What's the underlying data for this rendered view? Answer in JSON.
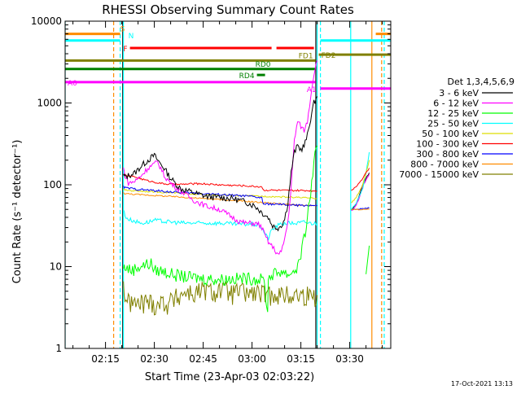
{
  "chart_data": {
    "type": "line",
    "title": "RHESSI Observing Summary Count Rates",
    "xlabel": "Start Time (23-Apr-03 02:03:22)",
    "ylabel": "Count Rate (s⁻¹ detector⁻¹)",
    "yscale": "log",
    "ylim": [
      1,
      10000
    ],
    "xlim_minutes": [
      2.6,
      102.6
    ],
    "x_tick_labels": [
      "02:15",
      "02:30",
      "02:45",
      "03:00",
      "03:15",
      "03:30"
    ],
    "x_tick_minutes": [
      15,
      30,
      45,
      60,
      75,
      90
    ],
    "y_tick_labels": [
      "1",
      "10",
      "100",
      "1000",
      "10000"
    ],
    "y_tick_values": [
      1,
      10,
      100,
      1000,
      10000
    ],
    "legend": {
      "title": "Det 1,3,4,5,6,9",
      "placement": "right-outside",
      "entries": [
        {
          "label": "3 - 6 keV",
          "color": "#000000"
        },
        {
          "label": "6 - 12 keV",
          "color": "#ff00ff"
        },
        {
          "label": "12 - 25 keV",
          "color": "#00ff00"
        },
        {
          "label": "25 - 50 keV",
          "color": "#00ffff"
        },
        {
          "label": "50 - 100 keV",
          "color": "#dddd00"
        },
        {
          "label": "100 - 300 keV",
          "color": "#ff0000"
        },
        {
          "label": "300 - 800 keV",
          "color": "#0000ff"
        },
        {
          "label": "800 - 7000 keV",
          "color": "#ff8c00"
        },
        {
          "label": "7000 - 15000 keV",
          "color": "#808000"
        }
      ]
    },
    "series": [
      {
        "name": "3 - 6 keV",
        "color": "#000000",
        "x": [
          20.5,
          21,
          24,
          26,
          28,
          30,
          31,
          33,
          35,
          38,
          42,
          46,
          50,
          54,
          58,
          61,
          63,
          65,
          66,
          67,
          68,
          69,
          70,
          71,
          72,
          73,
          74,
          75,
          76,
          77,
          78,
          79,
          80
        ],
        "y": [
          130,
          125,
          140,
          170,
          200,
          230,
          200,
          160,
          120,
          90,
          80,
          72,
          70,
          68,
          62,
          55,
          46,
          40,
          33,
          30,
          30,
          32,
          38,
          60,
          140,
          250,
          300,
          270,
          300,
          400,
          650,
          1000,
          1200
        ]
      },
      {
        "name": "6 - 12 keV",
        "color": "#ff00ff",
        "x": [
          20.5,
          21,
          22,
          24,
          26,
          28,
          30,
          31,
          32,
          33,
          35,
          38,
          42,
          46,
          50,
          52,
          54,
          56,
          58,
          60,
          62,
          63,
          64,
          65,
          66,
          67,
          68,
          69,
          70,
          71,
          72,
          73,
          74,
          75,
          76,
          77,
          78,
          79,
          80
        ],
        "y": [
          160,
          130,
          105,
          110,
          130,
          160,
          180,
          190,
          160,
          130,
          105,
          85,
          65,
          55,
          50,
          45,
          40,
          36,
          34,
          34,
          33,
          30,
          24,
          20,
          18,
          16,
          14,
          15,
          22,
          35,
          90,
          350,
          600,
          520,
          460,
          600,
          1200,
          2300,
          3300
        ]
      },
      {
        "name": "12 - 25 keV",
        "color": "#00ff00",
        "x": [
          20.5,
          21,
          23,
          25,
          27,
          29,
          30,
          32,
          34,
          36,
          40,
          45,
          50,
          55,
          60,
          62,
          63,
          64,
          64.2,
          64.8,
          65,
          66,
          68,
          69,
          70,
          71,
          72,
          73,
          74,
          75,
          76,
          77,
          78,
          79,
          80
        ],
        "y": [
          9.5,
          10,
          9,
          10,
          10.5,
          11,
          9,
          9,
          8.5,
          8,
          7.5,
          7.2,
          7,
          7.2,
          7.2,
          7,
          7,
          6.5,
          3.5,
          3.2,
          7,
          8,
          8.5,
          9,
          8.5,
          8,
          8.5,
          9,
          10,
          14,
          22,
          40,
          80,
          190,
          300
        ]
      },
      {
        "name": "25 - 50 keV",
        "color": "#00ffff",
        "x": [
          20.5,
          21,
          22,
          24,
          26,
          28,
          30,
          32,
          35,
          40,
          45,
          50,
          55,
          60,
          62,
          63,
          64,
          65,
          66,
          68,
          70,
          72,
          74,
          76,
          78,
          79,
          80
        ],
        "y": [
          50,
          42,
          38,
          36,
          34,
          35,
          37,
          36,
          35,
          34,
          34,
          34,
          33,
          33,
          32,
          30,
          25,
          22,
          28,
          32,
          34,
          34,
          34,
          35,
          34,
          34,
          34
        ]
      },
      {
        "name": "50 - 100 keV",
        "color": "#dddd00",
        "x": [
          20.5,
          21,
          25,
          30,
          35,
          40,
          45,
          50,
          55,
          60,
          65,
          70,
          75,
          80
        ],
        "y": [
          88,
          86,
          84,
          82,
          80,
          78,
          76,
          75,
          74,
          73,
          72,
          71,
          70,
          68
        ]
      },
      {
        "name": "100 - 300 keV",
        "color": "#ff0000",
        "x": [
          20.5,
          21,
          24,
          26,
          28,
          30,
          32,
          34,
          36,
          38,
          40,
          42,
          45,
          48,
          52,
          56,
          60,
          62,
          63,
          63.5,
          66,
          70,
          74,
          78,
          80
        ],
        "y": [
          135,
          130,
          125,
          118,
          112,
          108,
          104,
          102,
          101,
          101,
          102,
          103,
          103,
          101,
          99,
          98,
          96,
          95,
          95,
          86,
          86,
          85,
          85,
          85,
          84
        ]
      },
      {
        "name": "300 - 800 keV",
        "color": "#0000ff",
        "x": [
          20.5,
          21,
          25,
          30,
          35,
          40,
          45,
          50,
          55,
          60,
          62,
          63,
          63.5,
          66,
          70,
          74,
          78,
          80
        ],
        "y": [
          95,
          92,
          88,
          85,
          82,
          80,
          78,
          76,
          74,
          72,
          70,
          69,
          58,
          58,
          57,
          56,
          56,
          55
        ]
      },
      {
        "name": "800 - 7000 keV",
        "color": "#ff8c00",
        "x": [
          20.5,
          21,
          25,
          30,
          35,
          40,
          45,
          50,
          55,
          60,
          65,
          70,
          75,
          80
        ],
        "y": [
          80,
          78,
          76,
          74,
          72,
          70,
          68,
          66,
          64,
          62,
          60,
          58,
          56,
          55
        ]
      },
      {
        "name": "7000 - 15000 keV",
        "color": "#808000",
        "x": [
          20.5,
          21,
          22,
          23,
          24,
          26,
          28,
          30,
          32,
          34,
          36,
          38,
          40,
          42,
          44,
          46,
          48,
          50,
          52,
          54,
          56,
          58,
          60,
          62,
          64,
          65,
          66,
          68,
          70,
          72,
          74,
          76,
          78,
          80
        ],
        "y": [
          6,
          4.5,
          3.6,
          3.8,
          3.4,
          3.6,
          3.8,
          3.5,
          3.7,
          3.6,
          4,
          4.5,
          5,
          4.6,
          5,
          5.2,
          4.8,
          5.3,
          5,
          4.7,
          5,
          4.8,
          4.7,
          4.8,
          4.5,
          4.2,
          5,
          4.6,
          4.5,
          4.5,
          4.5,
          4.5,
          4.5,
          4.5
        ]
      }
    ],
    "after_gap_series": [
      {
        "name": "3 - 6 keV",
        "color": "#000000",
        "x": [
          90.5,
          91,
          92,
          93,
          94,
          95,
          96
        ],
        "y": [
          50,
          52,
          58,
          75,
          100,
          120,
          140
        ]
      },
      {
        "name": "6 - 12 keV",
        "color": "#ff00ff",
        "x": [
          90.5,
          91,
          92,
          93,
          94,
          95,
          96
        ],
        "y": [
          48,
          50,
          56,
          70,
          95,
          115,
          135
        ]
      },
      {
        "name": "12 - 25 keV",
        "color": "#00ff00",
        "x": [
          95,
          95.5,
          96
        ],
        "y": [
          8,
          12,
          18
        ]
      },
      {
        "name": "25 - 50 keV",
        "color": "#00ffff",
        "x": [
          90.5,
          92,
          94,
          95,
          96
        ],
        "y": [
          50,
          60,
          90,
          140,
          250
        ]
      },
      {
        "name": "50 - 100 keV",
        "color": "#dddd00",
        "x": [
          90.5,
          92,
          94,
          95,
          96
        ],
        "y": [
          60,
          70,
          100,
          140,
          200
        ]
      },
      {
        "name": "100 - 300 keV",
        "color": "#ff0000",
        "x": [
          90.5,
          92,
          94,
          95,
          96
        ],
        "y": [
          85,
          95,
          120,
          140,
          160
        ]
      },
      {
        "name": "300 - 800 keV",
        "color": "#0000ff",
        "x": [
          90.5,
          92,
          94,
          96
        ],
        "y": [
          50,
          50,
          51,
          52
        ]
      },
      {
        "name": "800 - 7000 keV",
        "color": "#ff8c00",
        "x": [
          90.5,
          92,
          94,
          96
        ],
        "y": [
          50,
          50,
          50,
          50
        ]
      }
    ],
    "flag_bars": [
      {
        "label": "S",
        "color": "#ff8c00",
        "y": 7000,
        "segments": [
          [
            2.6,
            19.5
          ],
          [
            98,
            102.6
          ]
        ]
      },
      {
        "label": "N",
        "color": "#00ffff",
        "y": 5800,
        "segments": [
          [
            2.6,
            19.5
          ],
          [
            81,
            102.6
          ]
        ]
      },
      {
        "label": "F",
        "color": "#ff0000",
        "y": 4700,
        "segments": [
          [
            22.5,
            66
          ],
          [
            67.5,
            79
          ]
        ]
      },
      {
        "label": "FD1",
        "color": "#808000",
        "y": 3300,
        "segments": [
          [
            2.6,
            79.5
          ]
        ]
      },
      {
        "label": "FD2",
        "color": "#808000",
        "y": 3900,
        "segments": [
          [
            80.5,
            102.6
          ]
        ]
      },
      {
        "label": "RD0",
        "color": "#008000",
        "y": 2600,
        "segments": [
          [
            2.6,
            79.5
          ]
        ]
      },
      {
        "label": "RD4",
        "color": "#008000",
        "y": 2200,
        "segments": [
          [
            61.5,
            64
          ]
        ]
      },
      {
        "label": "A0",
        "color": "#ff00ff",
        "y": 1800,
        "segments": [
          [
            2.6,
            79.5
          ]
        ]
      },
      {
        "label": "A1",
        "color": "#ff00ff",
        "y": 1500,
        "segments": [
          [
            81,
            102.6
          ]
        ]
      }
    ],
    "vertical_markers": [
      {
        "x": 2.6,
        "color": "#00ffff",
        "style": "solid"
      },
      {
        "x": 17.5,
        "color": "#ff8c00",
        "style": "dashed"
      },
      {
        "x": 19.5,
        "color": "#00ffff",
        "style": "dashed"
      },
      {
        "x": 20.3,
        "color": "#000000",
        "style": "solid"
      },
      {
        "x": 20.5,
        "color": "#00ffff",
        "style": "solid"
      },
      {
        "x": 79.6,
        "color": "#000000",
        "style": "solid"
      },
      {
        "x": 80.0,
        "color": "#00ffff",
        "style": "solid"
      },
      {
        "x": 81.0,
        "color": "#00ffff",
        "style": "dashed"
      },
      {
        "x": 90.3,
        "color": "#00ffff",
        "style": "solid"
      },
      {
        "x": 96.8,
        "color": "#ff8c00",
        "style": "solid"
      },
      {
        "x": 99.8,
        "color": "#ff8c00",
        "style": "dashed"
      },
      {
        "x": 100.6,
        "color": "#00ffff",
        "style": "dashed"
      }
    ],
    "footer_date": "17-Oct-2021 13:13"
  }
}
